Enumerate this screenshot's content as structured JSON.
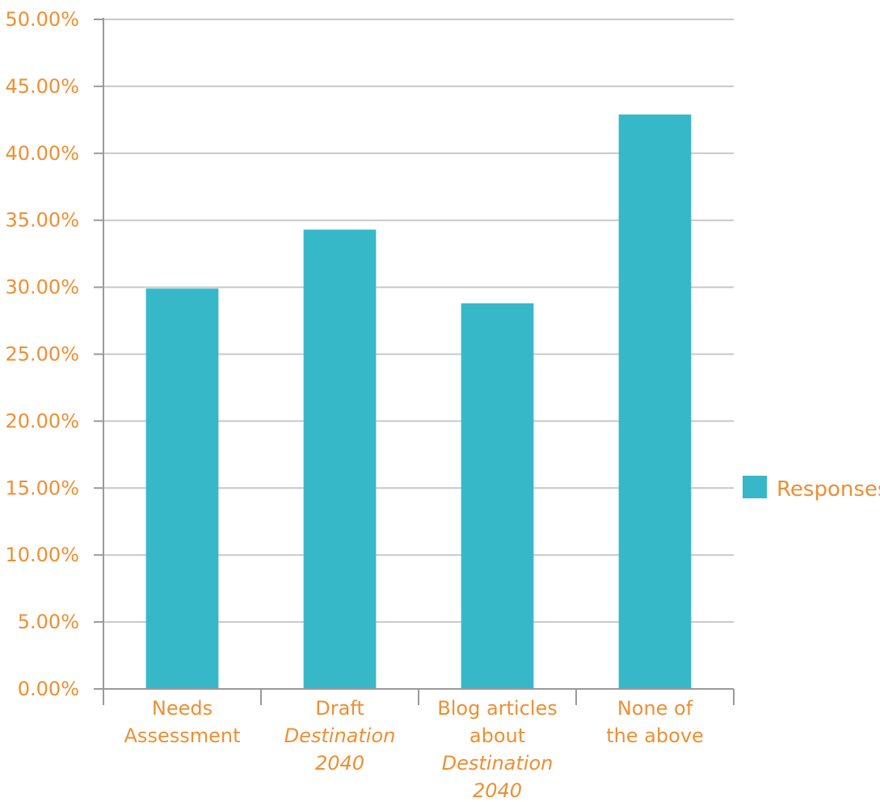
{
  "colors": {
    "bar": "#36B8C9",
    "text": "#EE8F33",
    "grid": "#C8C8C8",
    "axis": "#9A9A9A"
  },
  "chart_data": {
    "type": "bar",
    "title": "",
    "xlabel": "",
    "ylabel": "",
    "ylim": [
      0,
      50
    ],
    "ytick_step": 5,
    "yticks": [
      "0.00%",
      "5.00%",
      "10.00%",
      "15.00%",
      "20.00%",
      "25.00%",
      "30.00%",
      "35.00%",
      "40.00%",
      "45.00%",
      "50.00%"
    ],
    "grid": true,
    "legend_position": "right",
    "categories": [
      {
        "lines": [
          {
            "text": "Needs",
            "italic": false
          },
          {
            "text": "Assessment",
            "italic": false
          }
        ]
      },
      {
        "lines": [
          {
            "text": "Draft",
            "italic": false
          },
          {
            "text": "Destination",
            "italic": true
          },
          {
            "text": "2040",
            "italic": true
          }
        ]
      },
      {
        "lines": [
          {
            "text": "Blog articles",
            "italic": false
          },
          {
            "text": "about",
            "italic": false
          },
          {
            "text": "Destination",
            "italic": true
          },
          {
            "text": "2040",
            "italic": true
          }
        ]
      },
      {
        "lines": [
          {
            "text": "None of",
            "italic": false
          },
          {
            "text": "the above",
            "italic": false
          }
        ]
      }
    ],
    "series": [
      {
        "name": "Responses",
        "values": [
          29.9,
          34.3,
          28.8,
          42.9
        ]
      }
    ]
  }
}
